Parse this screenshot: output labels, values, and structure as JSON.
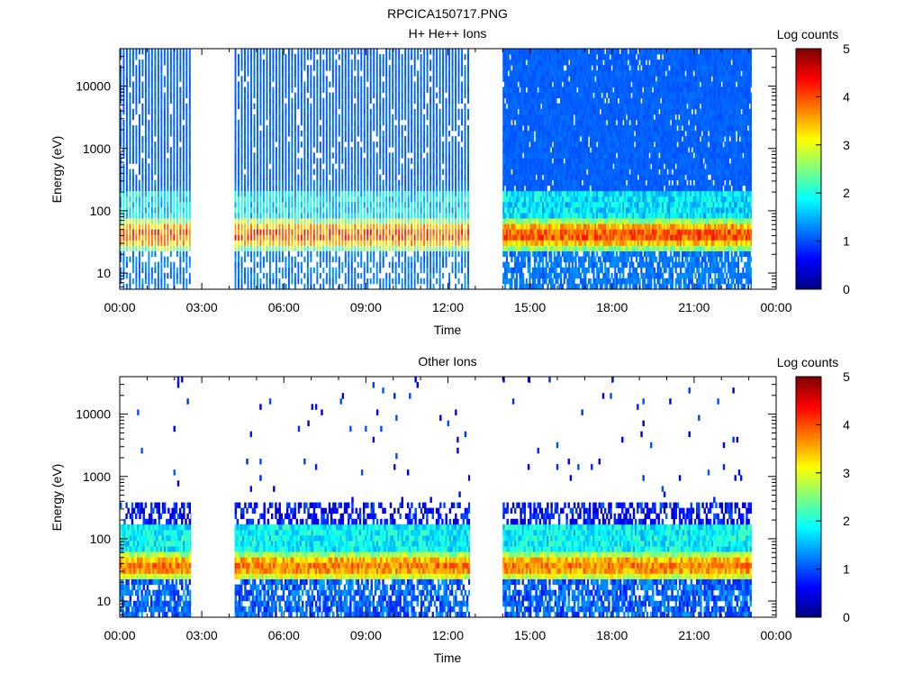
{
  "figure_title": "RPCICA150717.PNG",
  "colorscale": [
    "#00007f",
    "#0000ff",
    "#007fff",
    "#00ffff",
    "#7fff7f",
    "#ffff00",
    "#ff7f00",
    "#ff0000",
    "#7f0000"
  ],
  "chart_data": [
    {
      "type": "heatmap",
      "title": "H+ He++ Ions",
      "xlabel": "Time",
      "ylabel": "Energy (eV)",
      "y_scale": "log",
      "ylim": [
        5.5,
        40000
      ],
      "xlim": [
        "00:00",
        "24:00"
      ],
      "x_ticks": [
        "00:00",
        "03:00",
        "06:00",
        "09:00",
        "12:00",
        "15:00",
        "18:00",
        "21:00",
        "00:00"
      ],
      "y_ticks": [
        "10",
        "100",
        "1000",
        "10000"
      ],
      "colorbar": {
        "label": "Log counts",
        "range": [
          0,
          5
        ],
        "ticks": [
          "0",
          "1",
          "2",
          "3",
          "4",
          "5"
        ]
      },
      "data_intervals_hours": [
        [
          0.0,
          2.6
        ],
        [
          4.2,
          12.8
        ],
        [
          14.0,
          23.1
        ]
      ],
      "data_gaps_hours": [
        [
          2.6,
          4.2
        ],
        [
          12.8,
          14.0
        ],
        [
          23.1,
          24.0
        ]
      ],
      "peak_band_eV": [
        25,
        70
      ],
      "peak_log_counts": 4.4,
      "background_log_counts": 1.0
    },
    {
      "type": "heatmap",
      "title": "Other Ions",
      "xlabel": "Time",
      "ylabel": "Energy (eV)",
      "y_scale": "log",
      "ylim": [
        5.5,
        40000
      ],
      "xlim": [
        "00:00",
        "24:00"
      ],
      "x_ticks": [
        "00:00",
        "03:00",
        "06:00",
        "09:00",
        "12:00",
        "15:00",
        "18:00",
        "21:00",
        "00:00"
      ],
      "y_ticks": [
        "10",
        "100",
        "1000",
        "10000"
      ],
      "colorbar": {
        "label": "Log counts",
        "range": [
          0,
          5
        ],
        "ticks": [
          "0",
          "1",
          "2",
          "3",
          "4",
          "5"
        ]
      },
      "data_intervals_hours": [
        [
          0.0,
          2.6
        ],
        [
          4.2,
          12.8
        ],
        [
          14.0,
          23.1
        ]
      ],
      "data_gaps_hours": [
        [
          2.6,
          4.2
        ],
        [
          12.8,
          14.0
        ],
        [
          23.1,
          24.0
        ]
      ],
      "peak_band_eV": [
        22,
        60
      ],
      "peak_log_counts": 4.2,
      "background_log_counts": 0.3
    }
  ]
}
